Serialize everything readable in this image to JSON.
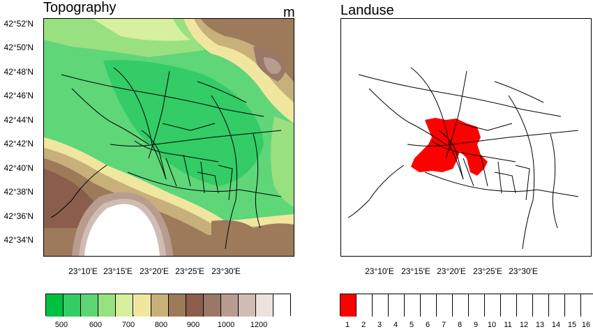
{
  "left_panel": {
    "title": "Topography",
    "unit": "m",
    "y_ticks": [
      "42°52'N",
      "42°50'N",
      "42°48'N",
      "42°46'N",
      "42°44'N",
      "42°42'N",
      "42°40'N",
      "42°38'N",
      "42°36'N",
      "42°34'N"
    ],
    "x_ticks": [
      "23°10'E",
      "23°15'E",
      "23°20'E",
      "23°25'E",
      "23°30'E"
    ],
    "colorbar": {
      "colors": [
        "#00c040",
        "#33cc66",
        "#5cd675",
        "#99e080",
        "#d6f09e",
        "#f0e6a0",
        "#c7b07a",
        "#9c7a5a",
        "#8a5e4a",
        "#9a7868",
        "#b89c90",
        "#d0bcb4",
        "#ece2de",
        "#ffffff"
      ],
      "labels": [
        "500",
        "600",
        "700",
        "800",
        "900",
        "1000",
        "1200"
      ]
    }
  },
  "right_panel": {
    "title": "Landuse",
    "x_ticks": [
      "23°10'E",
      "23°15'E",
      "23°20'E",
      "23°25'E",
      "23°30'E"
    ],
    "colorbar": {
      "colors": [
        "#ff0000",
        "#ffffff",
        "#ffffff",
        "#ffffff",
        "#ffffff",
        "#ffffff",
        "#ffffff",
        "#ffffff",
        "#ffffff",
        "#ffffff",
        "#ffffff",
        "#ffffff",
        "#ffffff",
        "#ffffff",
        "#ffffff",
        "#ffffff"
      ],
      "labels": [
        "1",
        "2",
        "3",
        "4",
        "5",
        "6",
        "7",
        "8",
        "9",
        "10",
        "11",
        "12",
        "13",
        "14",
        "15",
        "16"
      ]
    }
  }
}
